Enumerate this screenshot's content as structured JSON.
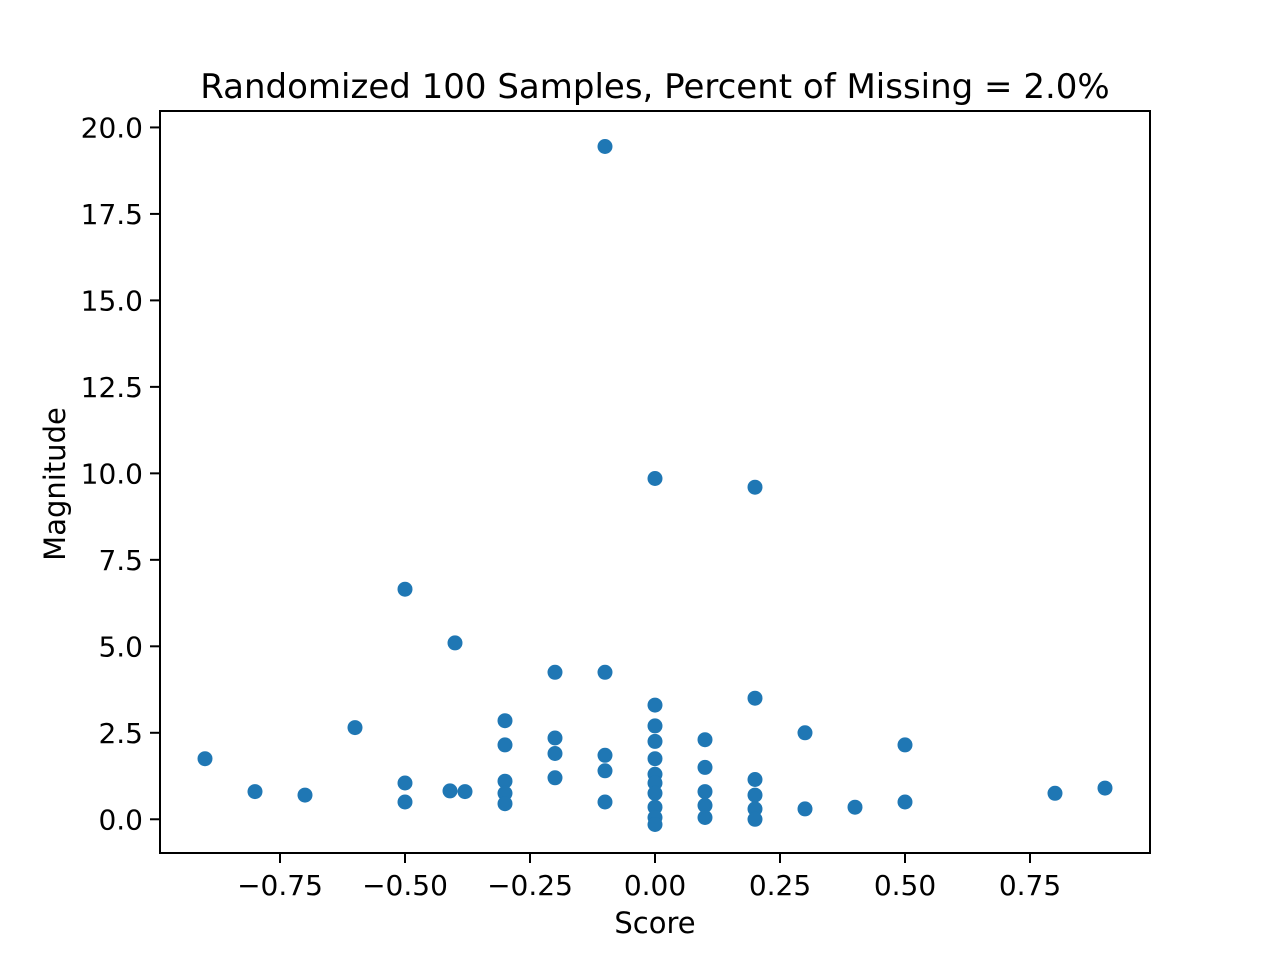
{
  "chart_data": {
    "type": "scatter",
    "title": "Randomized 100 Samples, Percent of Missing = 2.0%",
    "xlabel": "Score",
    "ylabel": "Magnitude",
    "xlim": [
      -0.99,
      0.99
    ],
    "ylim": [
      -0.975,
      20.475
    ],
    "x_ticks": [
      -0.75,
      -0.5,
      -0.25,
      0.0,
      0.25,
      0.5,
      0.75
    ],
    "x_tick_labels": [
      "−0.75",
      "−0.50",
      "−0.25",
      "0.00",
      "0.25",
      "0.50",
      "0.75"
    ],
    "y_ticks": [
      0.0,
      2.5,
      5.0,
      7.5,
      10.0,
      12.5,
      15.0,
      17.5,
      20.0
    ],
    "y_tick_labels": [
      "0.0",
      "2.5",
      "5.0",
      "7.5",
      "10.0",
      "12.5",
      "15.0",
      "17.5",
      "20.0"
    ],
    "grid": false,
    "legend_position": "none",
    "marker_color": "#1f77b4",
    "axis_color": "#000000",
    "background_color": "#ffffff",
    "points": [
      [
        -0.9,
        1.75
      ],
      [
        -0.8,
        0.8
      ],
      [
        -0.7,
        0.7
      ],
      [
        -0.6,
        2.65
      ],
      [
        -0.5,
        6.65
      ],
      [
        -0.5,
        1.05
      ],
      [
        -0.5,
        0.5
      ],
      [
        -0.4,
        5.1
      ],
      [
        -0.41,
        0.82
      ],
      [
        -0.38,
        0.8
      ],
      [
        -0.3,
        2.85
      ],
      [
        -0.3,
        2.15
      ],
      [
        -0.3,
        1.1
      ],
      [
        -0.3,
        0.75
      ],
      [
        -0.3,
        0.45
      ],
      [
        -0.2,
        4.25
      ],
      [
        -0.2,
        2.35
      ],
      [
        -0.2,
        1.9
      ],
      [
        -0.2,
        1.2
      ],
      [
        -0.1,
        19.45
      ],
      [
        -0.1,
        4.25
      ],
      [
        -0.1,
        1.85
      ],
      [
        -0.1,
        1.4
      ],
      [
        -0.1,
        0.5
      ],
      [
        0.0,
        9.85
      ],
      [
        0.0,
        3.3
      ],
      [
        0.0,
        2.7
      ],
      [
        0.0,
        2.25
      ],
      [
        0.0,
        1.75
      ],
      [
        0.0,
        1.3
      ],
      [
        0.0,
        1.05
      ],
      [
        0.0,
        0.75
      ],
      [
        0.0,
        0.35
      ],
      [
        0.0,
        0.05
      ],
      [
        0.0,
        -0.15
      ],
      [
        0.1,
        2.3
      ],
      [
        0.1,
        1.5
      ],
      [
        0.1,
        0.8
      ],
      [
        0.1,
        0.4
      ],
      [
        0.1,
        0.05
      ],
      [
        0.2,
        9.6
      ],
      [
        0.2,
        3.5
      ],
      [
        0.2,
        1.15
      ],
      [
        0.2,
        0.7
      ],
      [
        0.2,
        0.3
      ],
      [
        0.2,
        0.0
      ],
      [
        0.3,
        2.5
      ],
      [
        0.3,
        0.3
      ],
      [
        0.4,
        0.35
      ],
      [
        0.5,
        2.15
      ],
      [
        0.5,
        0.5
      ],
      [
        0.8,
        0.75
      ],
      [
        0.9,
        0.9
      ]
    ]
  }
}
